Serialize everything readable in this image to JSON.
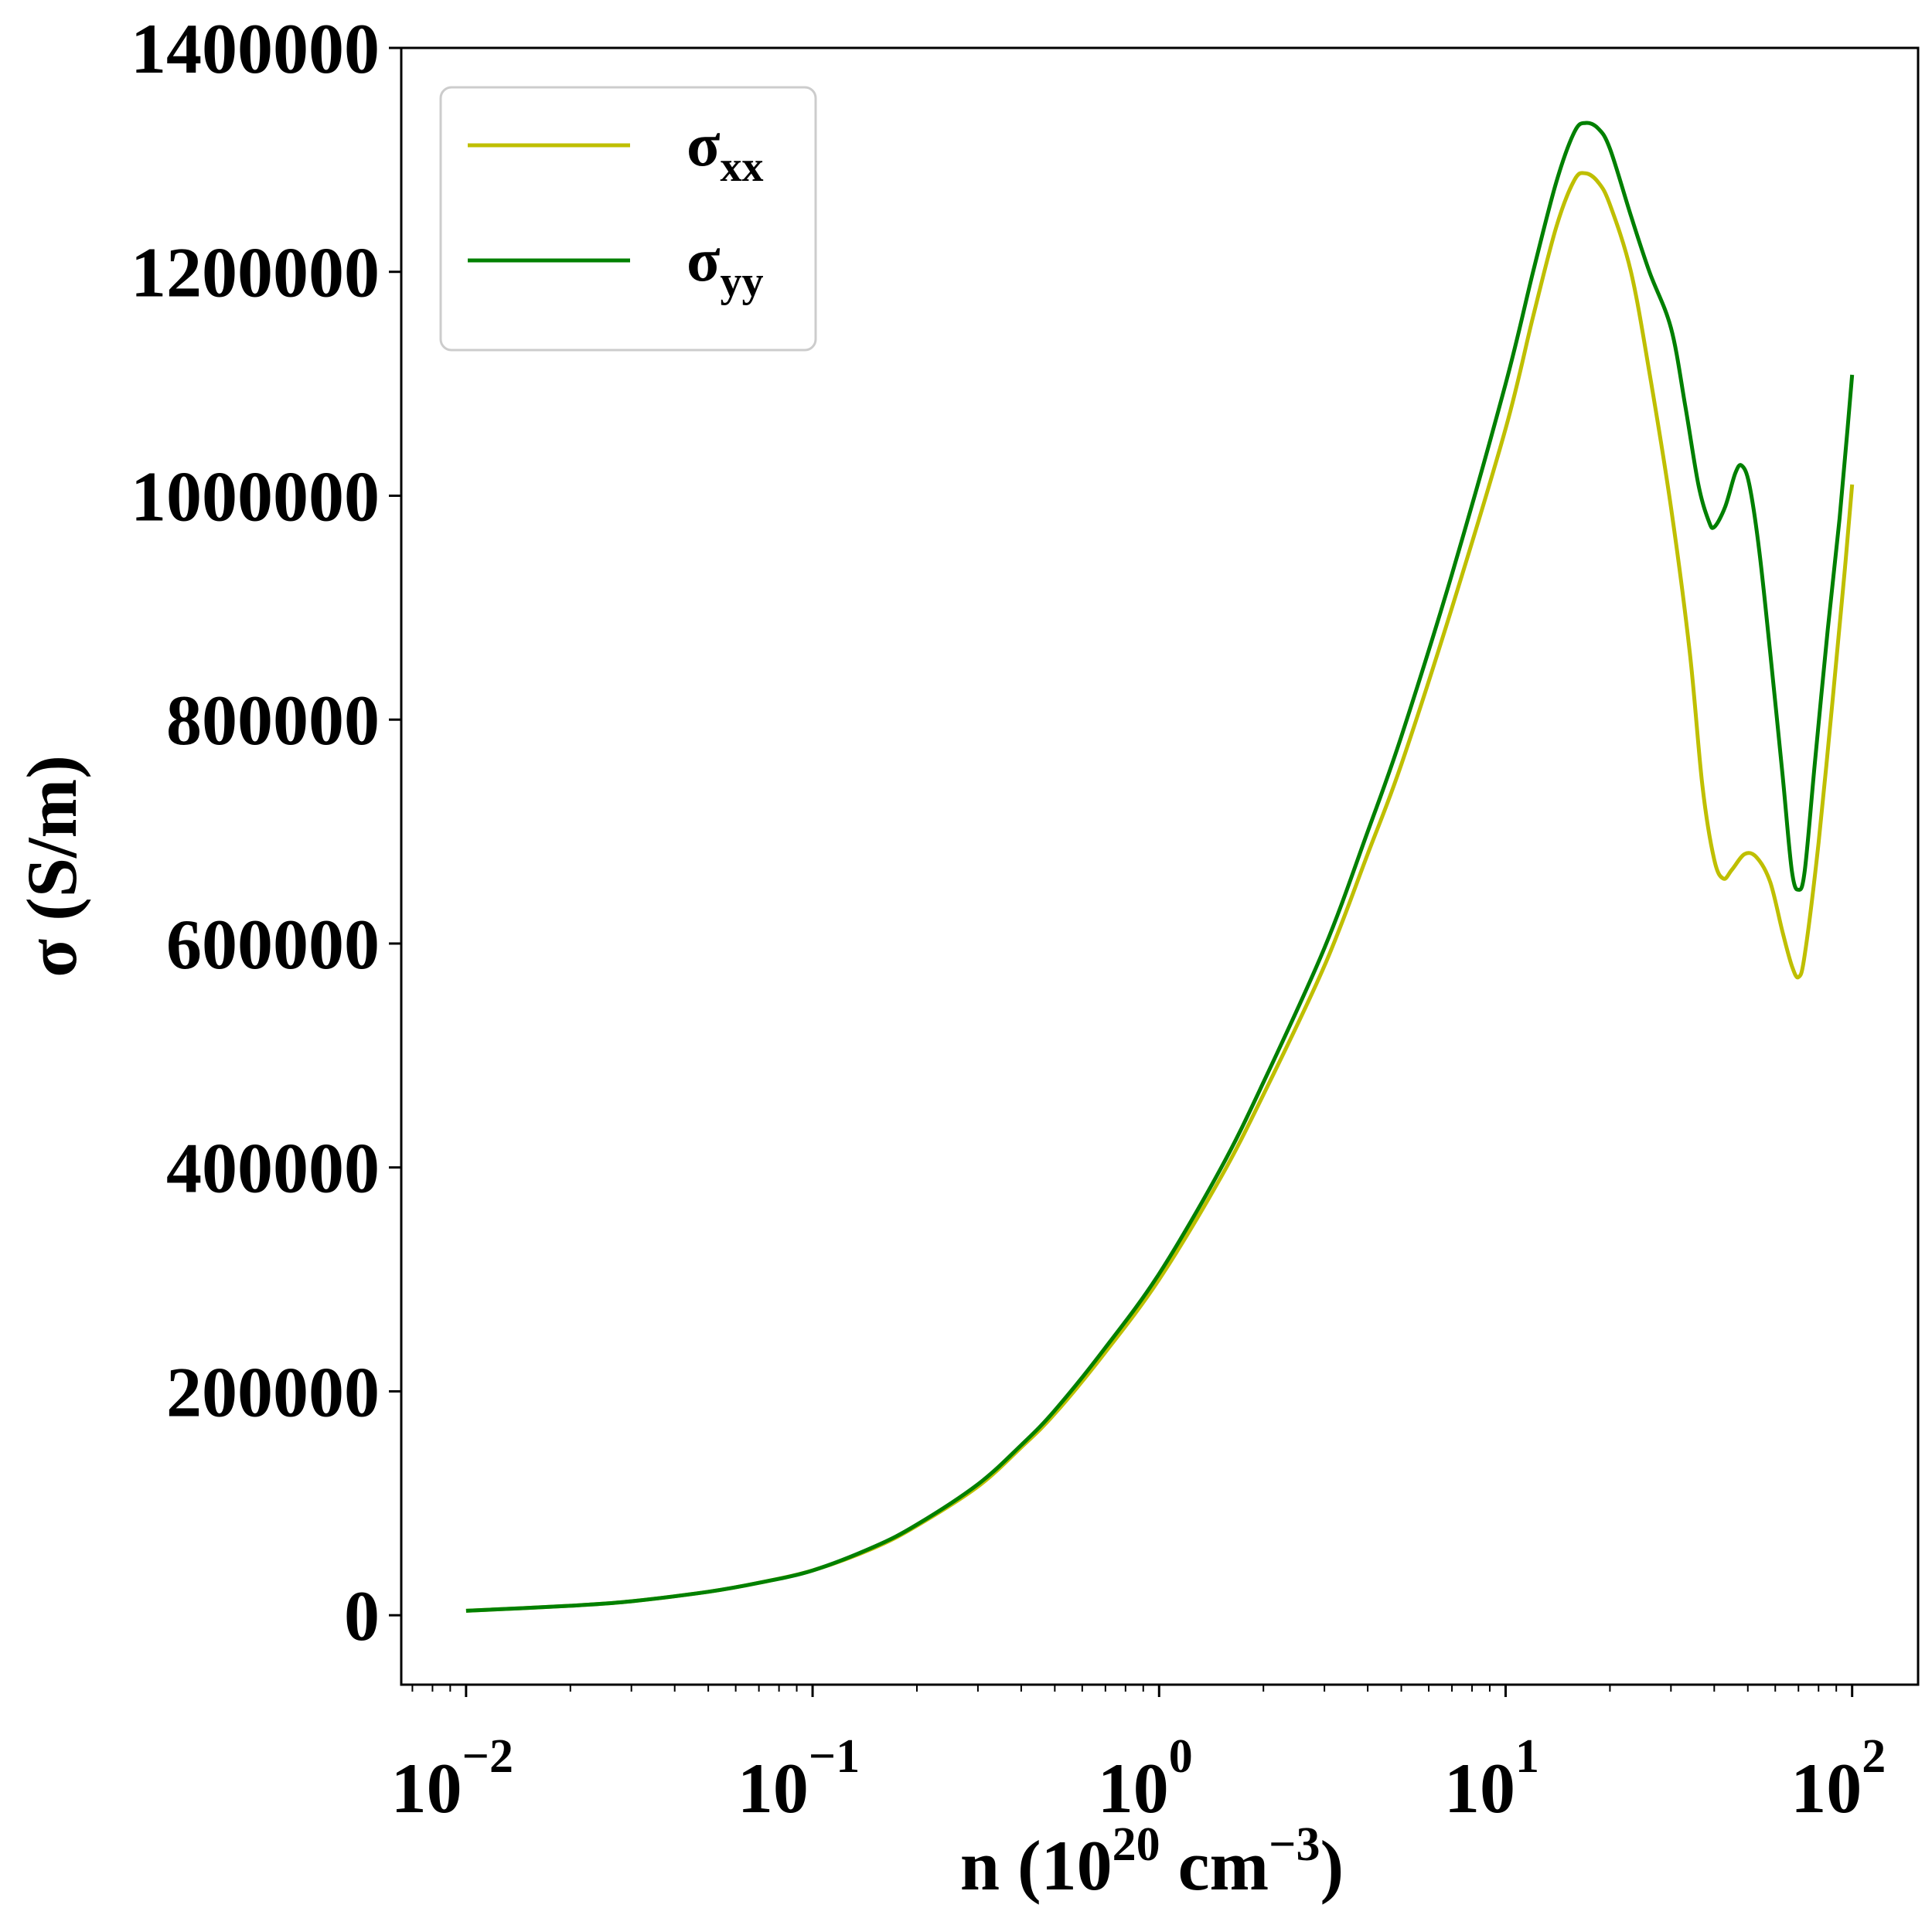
{
  "chart_data": {
    "type": "line",
    "title": "",
    "xlabel": {
      "main": "n (10",
      "exp1": "20",
      "mid": " cm",
      "exp2": "−3",
      "end": ")"
    },
    "ylabel": "σ (S/m)",
    "xscale": "log",
    "xlim": [
      0.0065,
      155
    ],
    "ylim": [
      -62000,
      1400000
    ],
    "x_ticks": [
      {
        "value": 0.01,
        "base": "10",
        "exp": "−2"
      },
      {
        "value": 0.1,
        "base": "10",
        "exp": "−1"
      },
      {
        "value": 1,
        "base": "10",
        "exp": "0"
      },
      {
        "value": 10,
        "base": "10",
        "exp": "1"
      },
      {
        "value": 100,
        "base": "10",
        "exp": "2"
      }
    ],
    "y_ticks": [
      {
        "value": 0,
        "label": "0"
      },
      {
        "value": 200000,
        "label": "200000"
      },
      {
        "value": 400000,
        "label": "400000"
      },
      {
        "value": 600000,
        "label": "600000"
      },
      {
        "value": 800000,
        "label": "800000"
      },
      {
        "value": 1000000,
        "label": "1000000"
      },
      {
        "value": 1200000,
        "label": "1200000"
      },
      {
        "value": 1400000,
        "label": "1400000"
      }
    ],
    "legend_position": "top-left",
    "series": [
      {
        "name": "σxx",
        "label_main": "σ",
        "label_sub": "xx",
        "color": "#bfbf00",
        "points": [
          [
            0.01,
            4000
          ],
          [
            0.02,
            8500
          ],
          [
            0.03,
            12500
          ],
          [
            0.05,
            21000
          ],
          [
            0.07,
            29000
          ],
          [
            0.1,
            40000
          ],
          [
            0.15,
            60000
          ],
          [
            0.2,
            80000
          ],
          [
            0.3,
            115000
          ],
          [
            0.4,
            150000
          ],
          [
            0.5,
            180000
          ],
          [
            0.7,
            235000
          ],
          [
            1.0,
            300000
          ],
          [
            1.5,
            390000
          ],
          [
            2.0,
            465000
          ],
          [
            3.0,
            580000
          ],
          [
            4.0,
            680000
          ],
          [
            5.0,
            760000
          ],
          [
            7.0,
            900000
          ],
          [
            10.0,
            1060000
          ],
          [
            12.0,
            1160000
          ],
          [
            14.0,
            1240000
          ],
          [
            15.8,
            1282000
          ],
          [
            17.0,
            1288000
          ],
          [
            18.5,
            1280000
          ],
          [
            20.0,
            1260000
          ],
          [
            23.0,
            1200000
          ],
          [
            26.0,
            1110000
          ],
          [
            30.0,
            990000
          ],
          [
            34.0,
            860000
          ],
          [
            37.0,
            740000
          ],
          [
            40.0,
            675000
          ],
          [
            42.5,
            658000
          ],
          [
            45.0,
            666000
          ],
          [
            49.0,
            680000
          ],
          [
            53.0,
            677000
          ],
          [
            58.0,
            655000
          ],
          [
            63.0,
            610000
          ],
          [
            67.0,
            580000
          ],
          [
            70.0,
            570000
          ],
          [
            73.0,
            590000
          ],
          [
            80.0,
            690000
          ],
          [
            88.0,
            820000
          ],
          [
            95.0,
            930000
          ],
          [
            100.0,
            1010000
          ]
        ]
      },
      {
        "name": "σyy",
        "label_main": "σ",
        "label_sub": "yy",
        "color": "#008000",
        "points": [
          [
            0.01,
            4000
          ],
          [
            0.02,
            8500
          ],
          [
            0.03,
            12500
          ],
          [
            0.05,
            21000
          ],
          [
            0.07,
            29000
          ],
          [
            0.1,
            40000
          ],
          [
            0.15,
            61000
          ],
          [
            0.2,
            81000
          ],
          [
            0.3,
            117000
          ],
          [
            0.4,
            152000
          ],
          [
            0.5,
            183000
          ],
          [
            0.7,
            239000
          ],
          [
            1.0,
            305000
          ],
          [
            1.5,
            398000
          ],
          [
            2.0,
            476000
          ],
          [
            3.0,
            596000
          ],
          [
            4.0,
            700000
          ],
          [
            5.0,
            785000
          ],
          [
            7.0,
            930000
          ],
          [
            10.0,
            1100000
          ],
          [
            12.0,
            1200000
          ],
          [
            14.0,
            1280000
          ],
          [
            15.8,
            1325000
          ],
          [
            17.0,
            1333000
          ],
          [
            18.5,
            1328000
          ],
          [
            20.0,
            1310000
          ],
          [
            23.0,
            1250000
          ],
          [
            26.0,
            1200000
          ],
          [
            30.0,
            1150000
          ],
          [
            33.0,
            1080000
          ],
          [
            36.0,
            1010000
          ],
          [
            38.5,
            978000
          ],
          [
            40.0,
            972000
          ],
          [
            43.0,
            990000
          ],
          [
            46.0,
            1020000
          ],
          [
            48.0,
            1027000
          ],
          [
            50.5,
            1010000
          ],
          [
            54.0,
            950000
          ],
          [
            58.0,
            860000
          ],
          [
            63.0,
            750000
          ],
          [
            67.0,
            665000
          ],
          [
            70.0,
            648000
          ],
          [
            73.0,
            665000
          ],
          [
            78.0,
            760000
          ],
          [
            85.0,
            880000
          ],
          [
            92.0,
            980000
          ],
          [
            97.0,
            1060000
          ],
          [
            100.0,
            1108000
          ]
        ]
      }
    ]
  }
}
